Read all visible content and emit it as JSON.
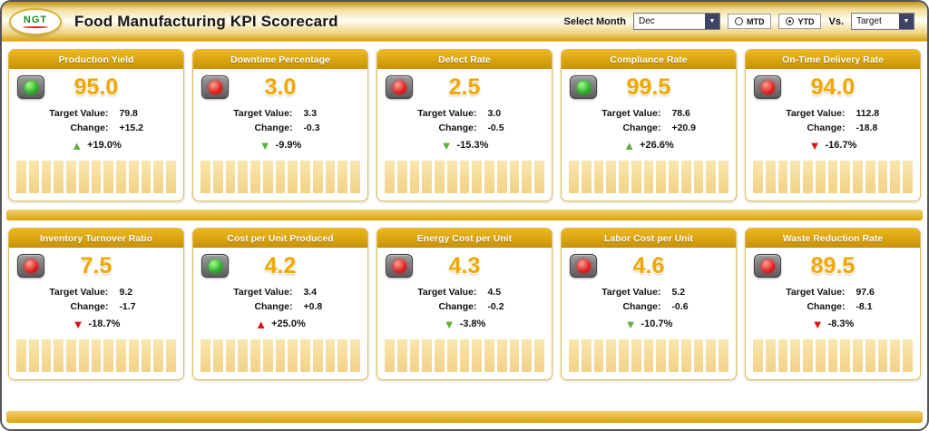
{
  "colors": {
    "trend_green": "#5FAF3C",
    "trend_red": "#DE1010",
    "light_green": "#2FB32F",
    "light_red": "#E32020",
    "gold_accent": "#D5A310",
    "value_gold": "#F0A800"
  },
  "header": {
    "logo_text": "NGT",
    "title": "Food Manufacturing KPI Scorecard",
    "select_month_label": "Select Month",
    "month_value": "Dec",
    "mtd_label": "MTD",
    "ytd_label": "YTD",
    "selected_period": "YTD",
    "vs_label": "Vs.",
    "vs_value": "Target"
  },
  "card_labels": {
    "target": "Target Value:",
    "change": "Change:"
  },
  "cards": [
    {
      "title": "Production Yield",
      "status": "green",
      "value": "95.0",
      "target": "79.8",
      "change": "+15.2",
      "trend_dir": "up",
      "trend_color": "green",
      "trend_pct": "+19.0%",
      "bar_count": 13
    },
    {
      "title": "Downtime Percentage",
      "status": "red",
      "value": "3.0",
      "target": "3.3",
      "change": "-0.3",
      "trend_dir": "down",
      "trend_color": "green",
      "trend_pct": "-9.9%",
      "bar_count": 13
    },
    {
      "title": "Defect Rate",
      "status": "red",
      "value": "2.5",
      "target": "3.0",
      "change": "-0.5",
      "trend_dir": "down",
      "trend_color": "green",
      "trend_pct": "-15.3%",
      "bar_count": 13
    },
    {
      "title": "Compliance Rate",
      "status": "green",
      "value": "99.5",
      "target": "78.6",
      "change": "+20.9",
      "trend_dir": "up",
      "trend_color": "green",
      "trend_pct": "+26.6%",
      "bar_count": 13
    },
    {
      "title": "On-Time Delivery Rate",
      "status": "red",
      "value": "94.0",
      "target": "112.8",
      "change": "-18.8",
      "trend_dir": "down",
      "trend_color": "red",
      "trend_pct": "-16.7%",
      "bar_count": 13
    },
    {
      "title": "Inventory Turnover Ratio",
      "status": "red",
      "value": "7.5",
      "target": "9.2",
      "change": "-1.7",
      "trend_dir": "down",
      "trend_color": "red",
      "trend_pct": "-18.7%",
      "bar_count": 13
    },
    {
      "title": "Cost per Unit Produced",
      "status": "green",
      "value": "4.2",
      "target": "3.4",
      "change": "+0.8",
      "trend_dir": "up",
      "trend_color": "red",
      "trend_pct": "+25.0%",
      "bar_count": 13
    },
    {
      "title": "Energy Cost per Unit",
      "status": "red",
      "value": "4.3",
      "target": "4.5",
      "change": "-0.2",
      "trend_dir": "down",
      "trend_color": "green",
      "trend_pct": "-3.8%",
      "bar_count": 13
    },
    {
      "title": "Labor Cost per Unit",
      "status": "red",
      "value": "4.6",
      "target": "5.2",
      "change": "-0.6",
      "trend_dir": "down",
      "trend_color": "green",
      "trend_pct": "-10.7%",
      "bar_count": 13
    },
    {
      "title": "Waste Reduction Rate",
      "status": "red",
      "value": "89.5",
      "target": "97.6",
      "change": "-8.1",
      "trend_dir": "down",
      "trend_color": "red",
      "trend_pct": "-8.3%",
      "bar_count": 13
    }
  ]
}
